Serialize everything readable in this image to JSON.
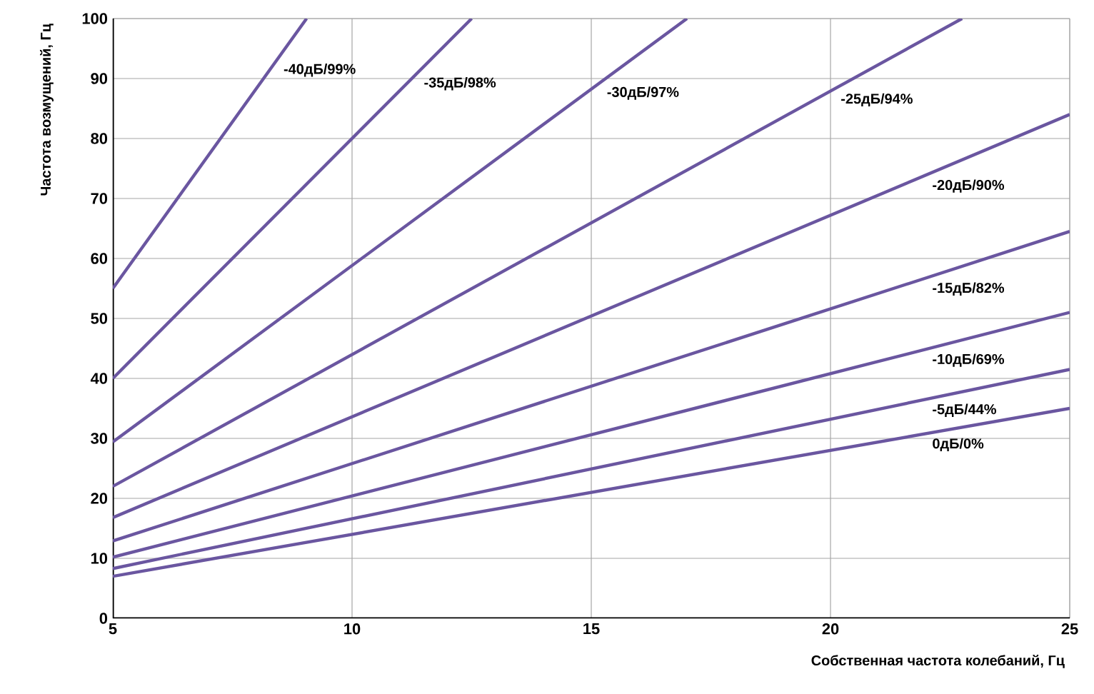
{
  "chart_data": {
    "type": "line",
    "xlabel": "Собственная частота колебаний, Гц",
    "ylabel": "Частота возмущений, Гц",
    "xlim": [
      5,
      25
    ],
    "ylim": [
      0,
      100
    ],
    "xticks": [
      5,
      10,
      15,
      20,
      25
    ],
    "yticks": [
      0,
      10,
      20,
      30,
      40,
      50,
      60,
      70,
      80,
      90,
      100
    ],
    "grid": true,
    "legend": false,
    "marker": "none",
    "line_style": "solid",
    "series": [
      {
        "name": "-40дБ/99%",
        "color": "#6a56a0",
        "x": [
          5,
          9.05
        ],
        "values": [
          55,
          100
        ]
      },
      {
        "name": "-35дБ/98%",
        "color": "#6a56a0",
        "x": [
          5,
          12.5
        ],
        "values": [
          40,
          100
        ]
      },
      {
        "name": "-30дБ/97%",
        "color": "#6a56a0",
        "x": [
          5,
          17
        ],
        "values": [
          29.4,
          100
        ]
      },
      {
        "name": "-25дБ/94%",
        "color": "#6a56a0",
        "x": [
          5,
          22.75
        ],
        "values": [
          22,
          100
        ]
      },
      {
        "name": "-20дБ/90%",
        "color": "#6a56a0",
        "x": [
          5,
          25
        ],
        "values": [
          16.8,
          84
        ]
      },
      {
        "name": "-15дБ/82%",
        "color": "#6a56a0",
        "x": [
          5,
          25
        ],
        "values": [
          12.9,
          64.5
        ]
      },
      {
        "name": "-10дБ/69%",
        "color": "#6a56a0",
        "x": [
          5,
          25
        ],
        "values": [
          10.2,
          51
        ]
      },
      {
        "name": "-5дБ/44%",
        "color": "#6a56a0",
        "x": [
          5,
          25
        ],
        "values": [
          8.3,
          41.5
        ]
      },
      {
        "name": "0дБ/0%",
        "color": "#6a56a0",
        "x": [
          5,
          25
        ],
        "values": [
          7,
          35
        ]
      }
    ]
  }
}
